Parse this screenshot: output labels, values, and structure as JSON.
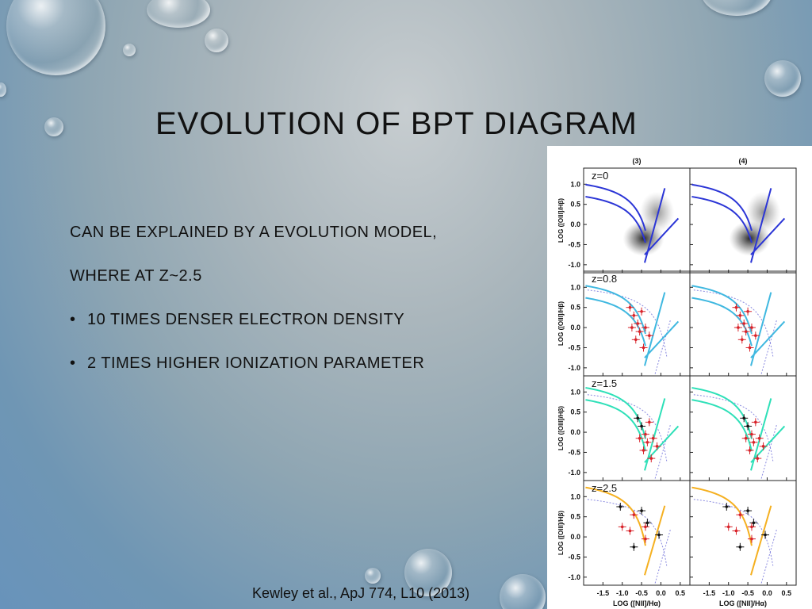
{
  "slide": {
    "title": "EVOLUTION OF BPT DIAGRAM",
    "lines": [
      "CAN BE EXPLAINED BY A EVOLUTION MODEL,",
      "WHERE AT Z~2.5"
    ],
    "bullets": [
      "10 TIMES DENSER ELECTRON DENSITY",
      "2 TIMES HIGHER IONIZATION PARAMETER"
    ],
    "bullet_symbol": "•",
    "citation": "Kewley et al., ApJ 774, L10 (2013)"
  },
  "figure": {
    "column_labels": [
      "(3)",
      "(4)"
    ],
    "row_labels": [
      "z=0",
      "z=0.8",
      "z=1.5",
      "z=2.5"
    ],
    "y_axis_label": "LOG ([OIII]/Hβ)",
    "x_axis_label": "LOG ([NII]/Hα)",
    "y_ticks": [
      "1.0",
      "0.5",
      "0.0",
      "-0.5",
      "-1.0"
    ],
    "x_ticks": [
      "-1.5",
      "-1.0",
      "-0.5",
      "0.0",
      "0.5"
    ],
    "colors": {
      "z0": "#2b35d6",
      "z08": "#3fb8e0",
      "z15": "#2ee0b8",
      "z25": "#f5b020",
      "points": "#d8232a",
      "points_alt": "#111111",
      "dotted": "#8a8ae0"
    }
  }
}
